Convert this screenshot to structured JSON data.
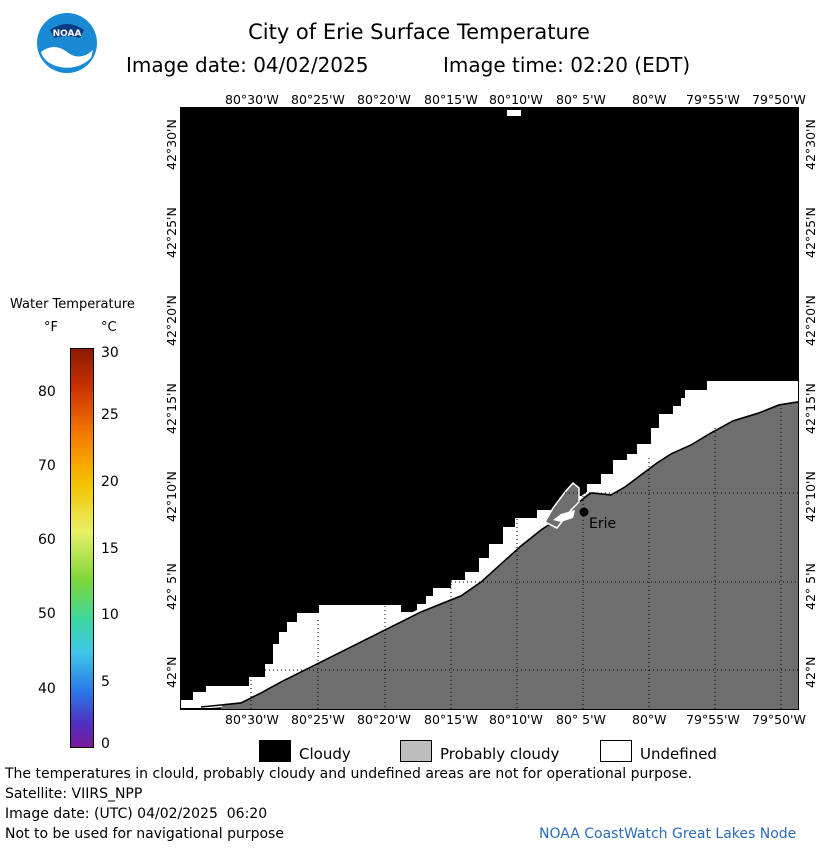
{
  "header": {
    "title": "City of Erie Surface Temperature",
    "image_date_label": "Image date: 04/02/2025",
    "image_time_label": "Image time: 02:20 (EDT)"
  },
  "logo": {
    "text": "NOAA",
    "icon": "noaa-logo-icon"
  },
  "map": {
    "longitude_ticks": [
      "80°30'W",
      "80°25'W",
      "80°20'W",
      "80°15'W",
      "80°10'W",
      "80° 5'W",
      "80°W",
      "79°55'W",
      "79°50'W"
    ],
    "latitude_ticks": [
      "42°30'N",
      "42°25'N",
      "42°20'N",
      "42°15'N",
      "42°10'N",
      "42° 5'N",
      "42°N"
    ],
    "city_label": "Erie"
  },
  "colorbar": {
    "title": "Water Temperature",
    "unit_f": "°F",
    "unit_c": "°C",
    "f_ticks": [
      "80",
      "70",
      "60",
      "50",
      "40"
    ],
    "c_ticks": [
      "30",
      "25",
      "20",
      "15",
      "10",
      "5",
      "0"
    ]
  },
  "legend": {
    "cloudy": "Cloudy",
    "probably_cloudy": "Probably cloudy",
    "undefined": "Undefined",
    "colors": {
      "cloudy": "#000000",
      "probably_cloudy": "#bebebe",
      "undefined": "#ffffff",
      "land": "#6e6e6e"
    }
  },
  "footer": {
    "disclaimer": "The temperatures in clould, probably cloudy and undefined areas are not for operational purpose.",
    "satellite": "Satellite: VIIRS_NPP",
    "utc_date": "Image date: (UTC) 04/02/2025  06:20",
    "navigation": "Not to be used for navigational purpose",
    "credit": "NOAA CoastWatch Great Lakes Node"
  }
}
